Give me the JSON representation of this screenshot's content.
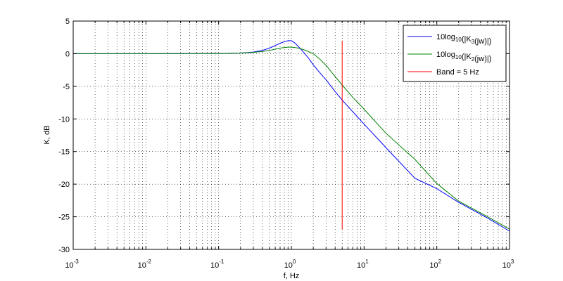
{
  "chart_data": {
    "type": "line",
    "xscale": "log",
    "xlim": [
      0.001,
      1000
    ],
    "ylim": [
      -30,
      5
    ],
    "xlabel": "f, Hz",
    "ylabel": "K, dB",
    "grid": true,
    "legend_position": "top-right",
    "x_ticks": [
      0.001,
      0.01,
      0.1,
      1,
      10,
      100,
      1000
    ],
    "x_tick_labels": [
      {
        "base": "10",
        "exp": "-3"
      },
      {
        "base": "10",
        "exp": "-2"
      },
      {
        "base": "10",
        "exp": "-1"
      },
      {
        "base": "10",
        "exp": "0"
      },
      {
        "base": "10",
        "exp": "1"
      },
      {
        "base": "10",
        "exp": "2"
      },
      {
        "base": "10",
        "exp": "3"
      }
    ],
    "y_ticks": [
      5,
      0,
      -5,
      -10,
      -15,
      -20,
      -25,
      -30
    ],
    "y_tick_labels": [
      "5",
      "0",
      "-5",
      "-10",
      "-15",
      "-20",
      "-25",
      "-30"
    ],
    "series": [
      {
        "legend": {
          "pre": "10log",
          "sub": "10",
          "mid": "(|K",
          "sub2": "3",
          "post": "(jw)|)"
        },
        "color": "#0000ff",
        "x": [
          0.001,
          0.01,
          0.1,
          0.2,
          0.3,
          0.4,
          0.5,
          0.6,
          0.7,
          0.8,
          0.9,
          1.0,
          1.1,
          1.2,
          1.4,
          1.7,
          2,
          2.5,
          3,
          4,
          5,
          7,
          10,
          20,
          50,
          100,
          200,
          500,
          1000
        ],
        "y": [
          0,
          0,
          0.05,
          0.1,
          0.25,
          0.5,
          0.85,
          1.25,
          1.6,
          1.85,
          2.0,
          2.0,
          1.7,
          1.3,
          0.5,
          -0.6,
          -1.7,
          -3.0,
          -4.0,
          -5.8,
          -7.1,
          -8.9,
          -10.8,
          -14.4,
          -19.1,
          -20.7,
          -22.8,
          -25.2,
          -27.2
        ]
      },
      {
        "legend": {
          "pre": "10log",
          "sub": "10",
          "mid": "(|K",
          "sub2": "2",
          "post": "(jw)|)"
        },
        "color": "#008000",
        "x": [
          0.001,
          0.01,
          0.1,
          0.2,
          0.3,
          0.4,
          0.5,
          0.6,
          0.7,
          0.8,
          0.9,
          1.0,
          1.2,
          1.5,
          2,
          2.5,
          3,
          4,
          5,
          7,
          10,
          20,
          50,
          100,
          200,
          500,
          1000
        ],
        "y": [
          0,
          0,
          0.02,
          0.1,
          0.2,
          0.35,
          0.5,
          0.7,
          0.85,
          0.95,
          1.0,
          1.0,
          0.9,
          0.6,
          0.0,
          -0.9,
          -1.8,
          -3.5,
          -4.8,
          -6.7,
          -8.5,
          -12.2,
          -16.2,
          -19.9,
          -22.6,
          -25.0,
          -26.9
        ]
      }
    ],
    "markers": [
      {
        "label": "Band = 5 Hz",
        "color": "#ff0000",
        "x": 5,
        "y_from": -27,
        "y_to": 2
      }
    ]
  }
}
